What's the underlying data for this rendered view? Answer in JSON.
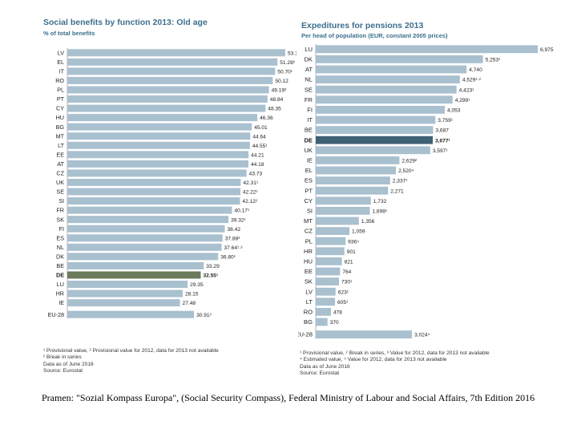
{
  "chart_data": [
    {
      "type": "bar",
      "orientation": "horizontal",
      "title": "Social benefits by function 2013: Old age",
      "subtitle": "% of total benefits",
      "categories": [
        "LV",
        "EL",
        "IT",
        "RO",
        "PL",
        "PT",
        "CY",
        "HU",
        "BG",
        "MT",
        "LT",
        "EE",
        "AT",
        "CZ",
        "UK",
        "SE",
        "SI",
        "FR",
        "SK",
        "FI",
        "ES",
        "NL",
        "DK",
        "BE",
        "DE",
        "LU",
        "HR",
        "IE",
        "EU-28"
      ],
      "values": [
        53.17,
        51.28,
        50.7,
        50.12,
        49.19,
        48.84,
        48.35,
        46.36,
        45.01,
        44.64,
        44.55,
        44.21,
        44.18,
        43.73,
        42.31,
        42.22,
        42.12,
        40.17,
        39.32,
        38.42,
        37.88,
        37.64,
        36.8,
        33.29,
        32.55,
        29.35,
        28.15,
        27.48,
        30.91
      ],
      "labels": [
        "53.17¹",
        "51.28²",
        "50.70¹",
        "50.12",
        "49.19²",
        "48.84",
        "48.35",
        "46.36",
        "45.01",
        "44.64",
        "44.55¹",
        "44.21",
        "44.18",
        "43.73",
        "42.31¹",
        "42.22¹",
        "42.12²",
        "40.17¹",
        "39.32¹",
        "38.42",
        "37.88²",
        "37.64¹·²",
        "36.80¹",
        "33.29",
        "32.55¹",
        "29.35",
        "28.15",
        "27.48",
        "30.91²"
      ],
      "highlight": "DE",
      "xlim": [
        0,
        55
      ],
      "footnotes": [
        "¹ Provisional value, ² Provisional value for 2012, data for 2013 not available",
        "² Break in series",
        "Data as of June 2016",
        "Source: Eurostat"
      ]
    },
    {
      "type": "bar",
      "orientation": "horizontal",
      "title": "Expeditures for pensions 2013",
      "subtitle": "Per head of population (EUR, constant 2005 prices)",
      "categories": [
        "LU",
        "DK",
        "AT",
        "NL",
        "SE",
        "FR",
        "FI",
        "IT",
        "BE",
        "DE",
        "UK",
        "IE",
        "EL",
        "ES",
        "PT",
        "CY",
        "SI",
        "MT",
        "CZ",
        "PL",
        "HR",
        "HU",
        "EE",
        "SK",
        "LV",
        "LT",
        "RO",
        "BG",
        "EU-28"
      ],
      "values": [
        6975,
        5253,
        4740,
        4529,
        4423,
        4299,
        4053,
        3759,
        3687,
        3677,
        3597,
        2629,
        2520,
        2337,
        2271,
        1732,
        1698,
        1356,
        1059,
        936,
        901,
        821,
        764,
        730,
        623,
        605,
        478,
        370,
        3024
      ],
      "labels": [
        "6,975",
        "5,253¹",
        "4,740",
        "4,529¹·²",
        "4,423¹",
        "4,299¹",
        "4,053",
        "3,759¹",
        "3,687",
        "3,677¹",
        "3,597¹",
        "2,629²",
        "2,520⁴",
        "2,337¹",
        "2,271",
        "1,732",
        "1,698¹",
        "1,356",
        "1,059",
        "936⁴",
        "901",
        "821",
        "764",
        "730¹",
        "623¹",
        "605¹",
        "478",
        "370",
        "3,024⁴"
      ],
      "highlight": "DE",
      "xlim": [
        0,
        7000
      ],
      "footnotes": [
        "¹ Provisional value, ² Break in series, ³ Value for 2012, data for 2013 not available",
        "⁴ Estimated value, ⁵ Value for 2012, data for 2013 not available",
        "Data as of June 2016",
        "Source: Eurostat"
      ]
    }
  ],
  "caption": "Pramen: \"Sozial Kompass Europa\", (Social Security Compass), Federal Ministry of Labour and Social Affairs, 7th Edition 2016",
  "colors": {
    "bar": "#a9c0cf",
    "highlight_left": "#6b7a5a",
    "highlight_right": "#3e6173",
    "title": "#3d6f8e",
    "eu": "#a9c0cf"
  }
}
